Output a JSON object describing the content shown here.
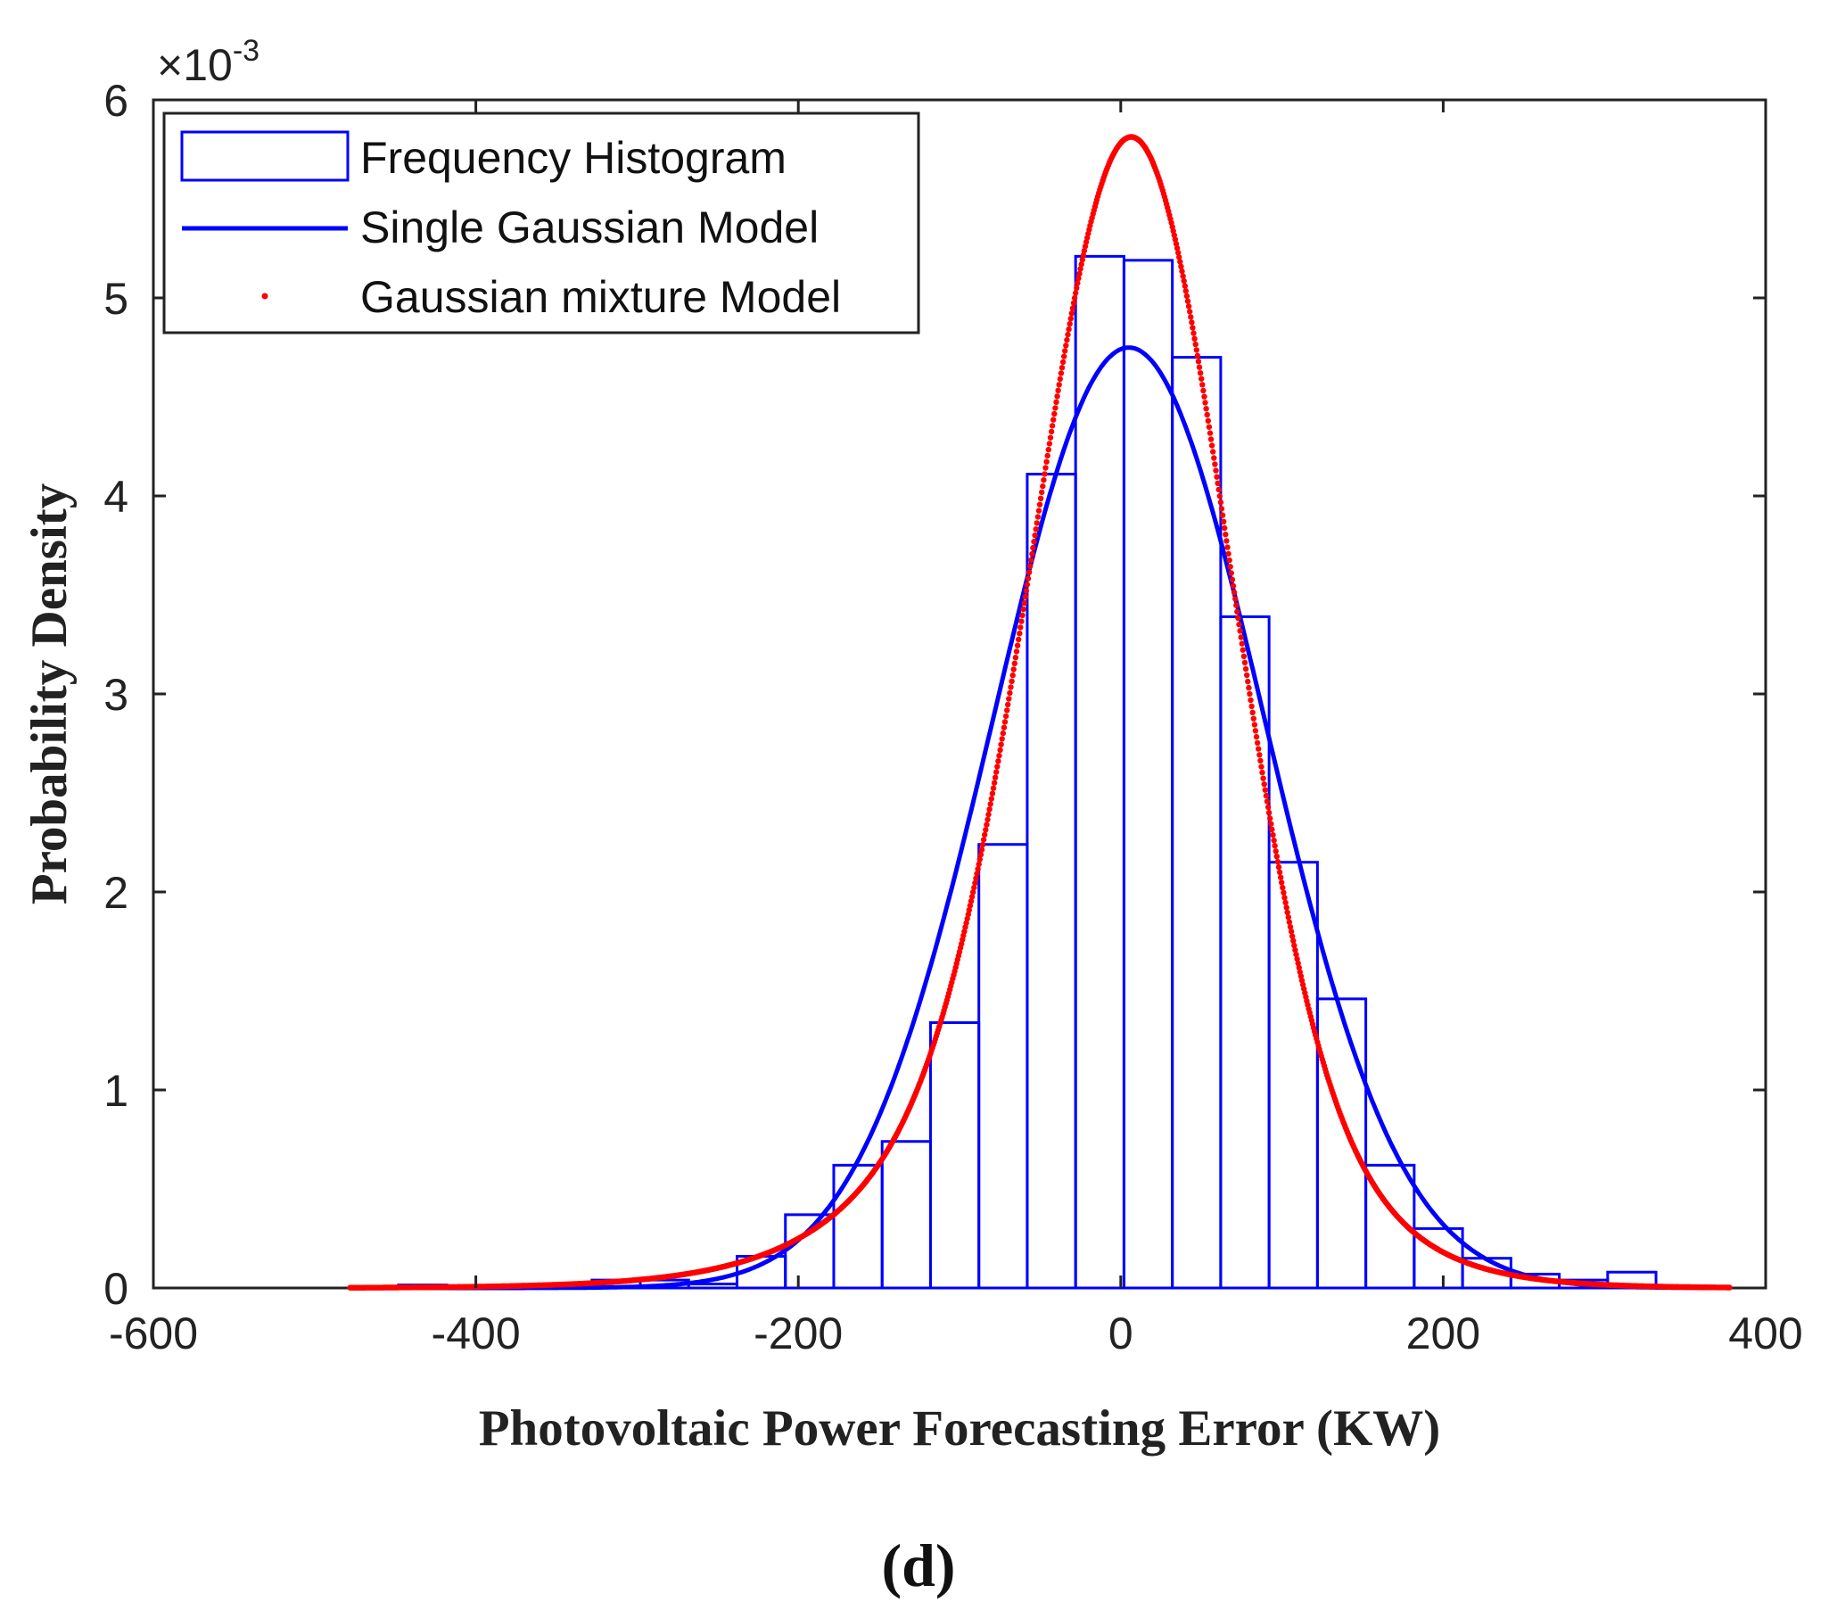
{
  "chart_data": {
    "type": "bar",
    "title": "",
    "xlabel": "Photovoltaic Power Forecasting Error (KW)",
    "ylabel": "Probability Density",
    "panel_label": "(d)",
    "y_exponent_prefix": "×10",
    "y_exponent_power": "-3",
    "xlim": [
      -600,
      400
    ],
    "ylim": [
      0,
      6
    ],
    "xticks": [
      "-600",
      "-400",
      "-200",
      "0",
      "200",
      "400"
    ],
    "yticks": [
      "0",
      "1",
      "2",
      "3",
      "4",
      "5",
      "6"
    ],
    "grid": false,
    "legend_position": "top-left",
    "colors": {
      "histogram": "#0000ff",
      "single_gaussian": "#0000ff",
      "mixture": "#ff0000",
      "axes": "#222222"
    },
    "histogram": {
      "name": "Frequency Histogram",
      "bin_edges": [
        -478,
        -448,
        -418,
        -388,
        -358,
        -328,
        -298,
        -268,
        -238,
        -208,
        -178,
        -148,
        -118,
        -88,
        -58,
        -28,
        2,
        32,
        62,
        92,
        122,
        152,
        182,
        212,
        242,
        272,
        302,
        332,
        362,
        378
      ],
      "values": [
        0.005,
        0.015,
        0.01,
        0.015,
        0.02,
        0.04,
        0.04,
        0.02,
        0.16,
        0.37,
        0.62,
        0.74,
        1.34,
        2.24,
        4.11,
        5.21,
        5.19,
        4.7,
        3.39,
        2.15,
        1.46,
        0.62,
        0.3,
        0.15,
        0.07,
        0.04,
        0.08,
        0.01,
        0.005
      ]
    },
    "series": [
      {
        "name": "Single Gaussian Model",
        "style": "line",
        "mean": 5,
        "std": 84,
        "x_range": [
          -478,
          378
        ]
      },
      {
        "name": "Gaussian mixture Model",
        "style": "dotted",
        "components": [
          {
            "weight": 0.64,
            "mean": 8,
            "std": 58
          },
          {
            "weight": 0.3,
            "mean": -5,
            "std": 95
          },
          {
            "weight": 0.06,
            "mean": -40,
            "std": 140
          }
        ],
        "x_range": [
          -478,
          378
        ]
      }
    ]
  }
}
